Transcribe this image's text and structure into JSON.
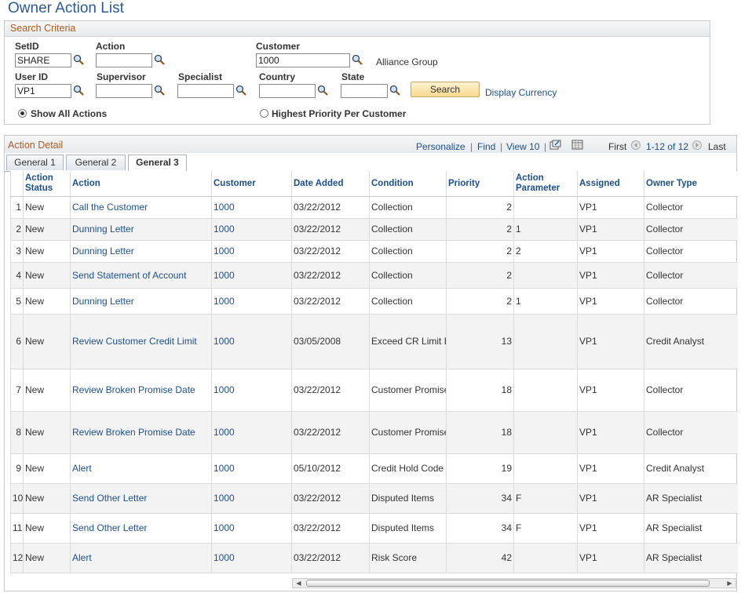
{
  "page_title": "Owner Action List",
  "search": {
    "section_title": "Search Criteria",
    "setid_label": "SetID",
    "setid_value": "SHARE",
    "action_label": "Action",
    "action_value": "",
    "customer_label": "Customer",
    "customer_value": "1000",
    "customer_name": "Alliance Group",
    "userid_label": "User ID",
    "userid_value": "VP1",
    "supervisor_label": "Supervisor",
    "supervisor_value": "",
    "specialist_label": "Specialist",
    "specialist_value": "",
    "country_label": "Country",
    "country_value": "",
    "state_label": "State",
    "state_value": "",
    "search_button": "Search",
    "display_currency_link": "Display Currency",
    "radio_show_all": "Show All Actions",
    "radio_highest": "Highest Priority Per Customer",
    "selected_radio": "show_all"
  },
  "detail": {
    "section_title": "Action Detail",
    "personalize": "Personalize",
    "find": "Find",
    "view": "View 10",
    "first": "First",
    "range": "1-12 of 12",
    "last": "Last",
    "tabs": [
      "General 1",
      "General 2",
      "General 3"
    ],
    "active_tab": "General 3",
    "columns": [
      "",
      "Action Status",
      "Action",
      "Customer",
      "Date Added",
      "Condition",
      "Priority",
      "Action Parameter",
      "Assigned",
      "Owner Type"
    ],
    "rows": [
      {
        "n": "1",
        "status": "New",
        "action": "Call the Customer",
        "customer": "1000",
        "date": "03/22/2012",
        "condition": "Collection",
        "priority": "2",
        "param": "",
        "assigned": "VP1",
        "owner": "Collector"
      },
      {
        "n": "2",
        "status": "New",
        "action": "Dunning Letter",
        "customer": "1000",
        "date": "03/22/2012",
        "condition": "Collection",
        "priority": "2",
        "param": "1",
        "assigned": "VP1",
        "owner": "Collector"
      },
      {
        "n": "3",
        "status": "New",
        "action": "Dunning Letter",
        "customer": "1000",
        "date": "03/22/2012",
        "condition": "Collection",
        "priority": "2",
        "param": "2",
        "assigned": "VP1",
        "owner": "Collector"
      },
      {
        "n": "4",
        "status": "New",
        "action": "Send Statement of Account",
        "customer": "1000",
        "date": "03/22/2012",
        "condition": "Collection",
        "priority": "2",
        "param": "",
        "assigned": "VP1",
        "owner": "Collector"
      },
      {
        "n": "5",
        "status": "New",
        "action": "Dunning Letter",
        "customer": "1000",
        "date": "03/22/2012",
        "condition": "Collection",
        "priority": "2",
        "param": "1",
        "assigned": "VP1",
        "owner": "Collector"
      },
      {
        "n": "6",
        "status": "New",
        "action": "Review Customer Credit Limit",
        "customer": "1000",
        "date": "03/05/2008",
        "condition": "Exceed CR Limit Expiration Dt",
        "priority": "13",
        "param": "",
        "assigned": "VP1",
        "owner": "Credit Analyst"
      },
      {
        "n": "7",
        "status": "New",
        "action": "Review Broken Promise Date",
        "customer": "1000",
        "date": "03/22/2012",
        "condition": "Customer Promise Date Broken",
        "priority": "18",
        "param": "",
        "assigned": "VP1",
        "owner": "Collector"
      },
      {
        "n": "8",
        "status": "New",
        "action": "Review Broken Promise Date",
        "customer": "1000",
        "date": "03/22/2012",
        "condition": "Customer Promise Date Broken",
        "priority": "18",
        "param": "",
        "assigned": "VP1",
        "owner": "Collector"
      },
      {
        "n": "9",
        "status": "New",
        "action": "Alert",
        "customer": "1000",
        "date": "05/10/2012",
        "condition": "Credit Hold Code Exists",
        "priority": "19",
        "param": "",
        "assigned": "VP1",
        "owner": "Credit Analyst"
      },
      {
        "n": "10",
        "status": "New",
        "action": "Send Other Letter",
        "customer": "1000",
        "date": "03/22/2012",
        "condition": "Disputed Items",
        "priority": "34",
        "param": "F",
        "assigned": "VP1",
        "owner": "AR Specialist"
      },
      {
        "n": "11",
        "status": "New",
        "action": "Send Other Letter",
        "customer": "1000",
        "date": "03/22/2012",
        "condition": "Disputed Items",
        "priority": "34",
        "param": "F",
        "assigned": "VP1",
        "owner": "AR Specialist"
      },
      {
        "n": "12",
        "status": "New",
        "action": "Alert",
        "customer": "1000",
        "date": "03/22/2012",
        "condition": "Risk Score",
        "priority": "42",
        "param": "",
        "assigned": "VP1",
        "owner": "AR Specialist"
      }
    ]
  }
}
